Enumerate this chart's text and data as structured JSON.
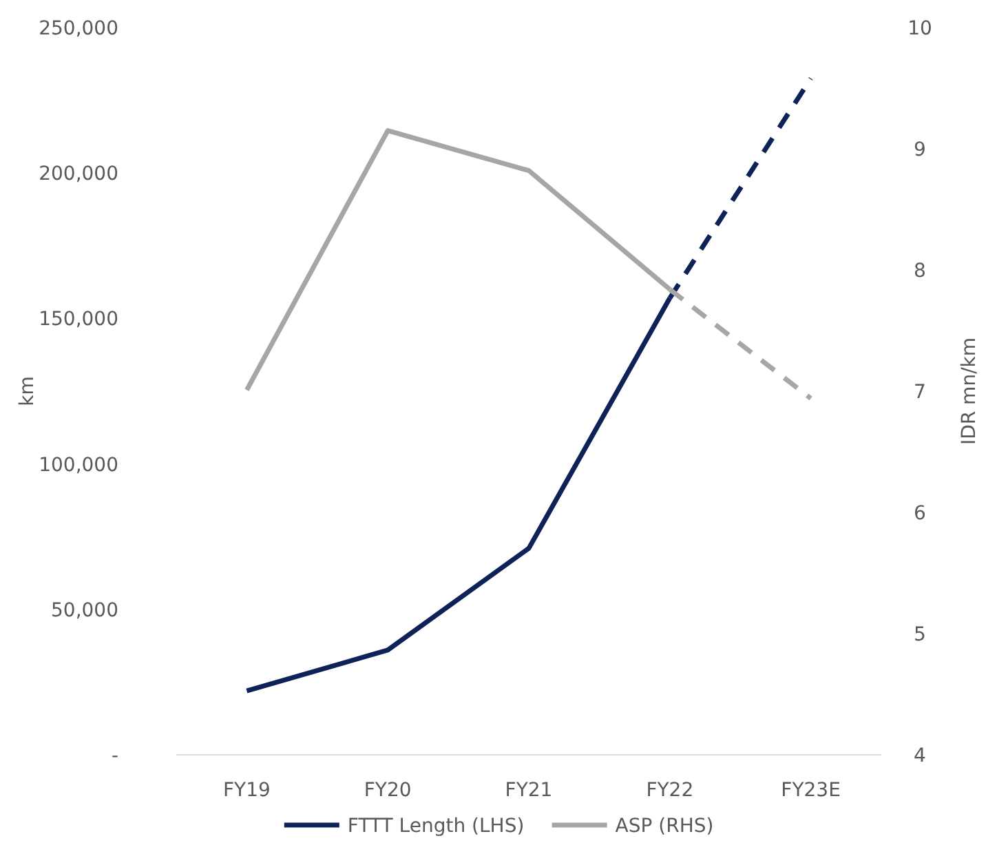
{
  "chart_data": {
    "type": "line",
    "categories": [
      "FY19",
      "FY20",
      "FY21",
      "FY22",
      "FY23E"
    ],
    "ylabel": "km",
    "y2label": "IDR mn/km",
    "ylim": [
      0,
      250000
    ],
    "yticks": [
      {
        "value": 0,
        "label": "-"
      },
      {
        "value": 50000,
        "label": "50,000"
      },
      {
        "value": 100000,
        "label": "100,000"
      },
      {
        "value": 150000,
        "label": "150,000"
      },
      {
        "value": 200000,
        "label": "200,000"
      },
      {
        "value": 250000,
        "label": "250,000"
      }
    ],
    "y2lim": [
      4,
      10
    ],
    "y2ticks": [
      4,
      5,
      6,
      7,
      8,
      9,
      10
    ],
    "series": [
      {
        "name": "FTTT Length (LHS)",
        "color": "#0e2257",
        "values": [
          22000,
          36000,
          71000,
          157000,
          null
        ],
        "line_style": "solid"
      },
      {
        "name": "ASP (RHS)",
        "color": "#a6a6a6",
        "axis": "y2",
        "values": [
          7.01,
          9.15,
          8.82,
          7.84,
          null
        ],
        "line_style": "solid"
      },
      {
        "color": "#0e2257",
        "values": [
          null,
          null,
          null,
          157000,
          232500
        ],
        "line_style": "dashed"
      },
      {
        "color": "#a6a6a6",
        "axis": "y2",
        "values": [
          null,
          null,
          null,
          7.84,
          6.94
        ],
        "line_style": "dashed"
      }
    ],
    "grid": false,
    "legend": "bottom"
  }
}
